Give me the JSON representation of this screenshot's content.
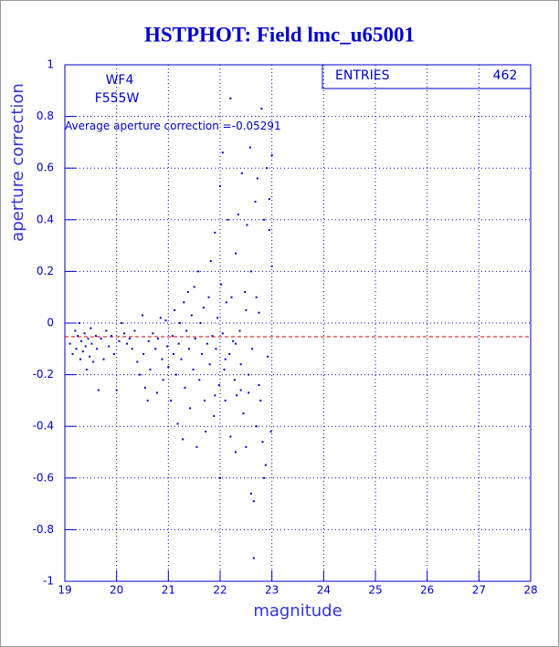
{
  "chart_data": {
    "type": "scatter",
    "title": "HSTPHOT: Field lmc_u65001",
    "xlabel": "magnitude",
    "ylabel": "aperture correction",
    "annotations": [
      "WF4",
      "F555W"
    ],
    "mean": {
      "label": "Average aperture correction =",
      "value": -0.05291,
      "color": "#dd0000"
    },
    "stats": {
      "label": "ENTRIES",
      "value": 462
    },
    "color": "#0000cc",
    "grid": true,
    "xlim": [
      19,
      28
    ],
    "xticks": [
      19,
      20,
      21,
      22,
      23,
      24,
      25,
      26,
      27,
      28
    ],
    "ylim": [
      -1,
      1
    ],
    "yticks": [
      -1,
      -0.8,
      -0.6,
      -0.4,
      -0.2,
      0,
      0.2,
      0.4,
      0.6,
      0.8,
      1
    ],
    "x": [
      19.1,
      19.15,
      19.2,
      19.22,
      19.25,
      19.28,
      19.3,
      19.32,
      19.35,
      19.38,
      19.4,
      19.42,
      19.45,
      19.48,
      19.5,
      19.52,
      19.55,
      19.6,
      19.62,
      19.65,
      19.7,
      19.75,
      19.8,
      19.85,
      19.9,
      19.95,
      20.0,
      20.05,
      20.1,
      20.15,
      20.2,
      20.25,
      20.3,
      20.35,
      20.4,
      20.45,
      20.5,
      20.52,
      20.55,
      20.6,
      20.62,
      20.65,
      20.7,
      20.75,
      20.78,
      20.8,
      20.85,
      20.88,
      20.9,
      20.95,
      20.98,
      21.0,
      21.05,
      21.08,
      21.1,
      21.12,
      21.15,
      21.18,
      21.2,
      21.22,
      21.25,
      21.28,
      21.3,
      21.32,
      21.35,
      21.38,
      21.4,
      21.42,
      21.45,
      21.48,
      21.5,
      21.52,
      21.55,
      21.58,
      21.6,
      21.62,
      21.65,
      21.68,
      21.7,
      21.72,
      21.75,
      21.78,
      21.8,
      21.82,
      21.85,
      21.88,
      21.9,
      21.92,
      21.95,
      21.98,
      22.0,
      22.0,
      22.02,
      22.05,
      22.05,
      22.08,
      22.1,
      22.12,
      22.15,
      22.18,
      22.2,
      22.2,
      22.22,
      22.25,
      22.28,
      22.3,
      22.3,
      22.32,
      22.35,
      22.38,
      22.4,
      22.42,
      22.45,
      22.48,
      22.5,
      22.52,
      22.55,
      22.58,
      22.6,
      22.6,
      22.62,
      22.65,
      22.65,
      22.68,
      22.7,
      22.72,
      22.75,
      22.78,
      22.8,
      22.82,
      22.85,
      22.88,
      22.9,
      22.92,
      22.95,
      22.98,
      23.0,
      23.0,
      22.85,
      22.5,
      22.4,
      22.7,
      22.3,
      22.1,
      21.9,
      22.55,
      22.75,
      22.95
    ],
    "values": [
      -0.08,
      -0.12,
      -0.03,
      -0.1,
      -0.05,
      0.0,
      -0.14,
      -0.07,
      -0.11,
      -0.04,
      -0.09,
      -0.18,
      -0.06,
      -0.13,
      -0.02,
      -0.08,
      -0.15,
      -0.05,
      -0.1,
      -0.26,
      -0.06,
      -0.14,
      -0.03,
      -0.09,
      -0.05,
      -0.12,
      -0.26,
      -0.07,
      0.0,
      -0.04,
      -0.08,
      -0.06,
      -0.1,
      -0.03,
      -0.15,
      -0.2,
      0.03,
      -0.12,
      -0.25,
      -0.3,
      -0.07,
      -0.18,
      -0.04,
      -0.1,
      -0.27,
      -0.06,
      0.02,
      -0.14,
      -0.22,
      0.01,
      -0.09,
      -0.17,
      -0.3,
      -0.05,
      -0.12,
      0.05,
      -0.2,
      -0.39,
      -0.08,
      0.0,
      -0.14,
      -0.45,
      0.08,
      -0.25,
      -0.03,
      0.12,
      -0.1,
      -0.33,
      0.03,
      -0.18,
      0.14,
      -0.06,
      -0.48,
      0.2,
      -0.22,
      0.0,
      -0.12,
      0.06,
      -0.3,
      -0.42,
      -0.08,
      0.1,
      -0.16,
      0.24,
      -0.05,
      -0.36,
      0.35,
      -0.1,
      0.02,
      -0.24,
      -0.6,
      0.53,
      0.15,
      -0.04,
      0.66,
      -0.18,
      -0.3,
      0.08,
      0.4,
      -0.12,
      -0.44,
      0.87,
      0.1,
      -0.07,
      -0.22,
      0.27,
      -0.5,
      -0.28,
      0.42,
      -0.03,
      -0.16,
      0.58,
      -0.35,
      0.12,
      -0.48,
      0.38,
      -0.27,
      0.68,
      -0.66,
      0.2,
      -0.1,
      -0.69,
      -0.91,
      0.47,
      -0.4,
      0.56,
      0.04,
      -0.3,
      0.83,
      -0.46,
      0.4,
      -0.55,
      0.6,
      -0.13,
      0.48,
      -0.42,
      0.22,
      0.65,
      -0.6,
      0.05,
      -0.26,
      0.1,
      -0.08,
      -0.14,
      -0.28,
      -0.2,
      -0.24,
      0.36
    ]
  }
}
